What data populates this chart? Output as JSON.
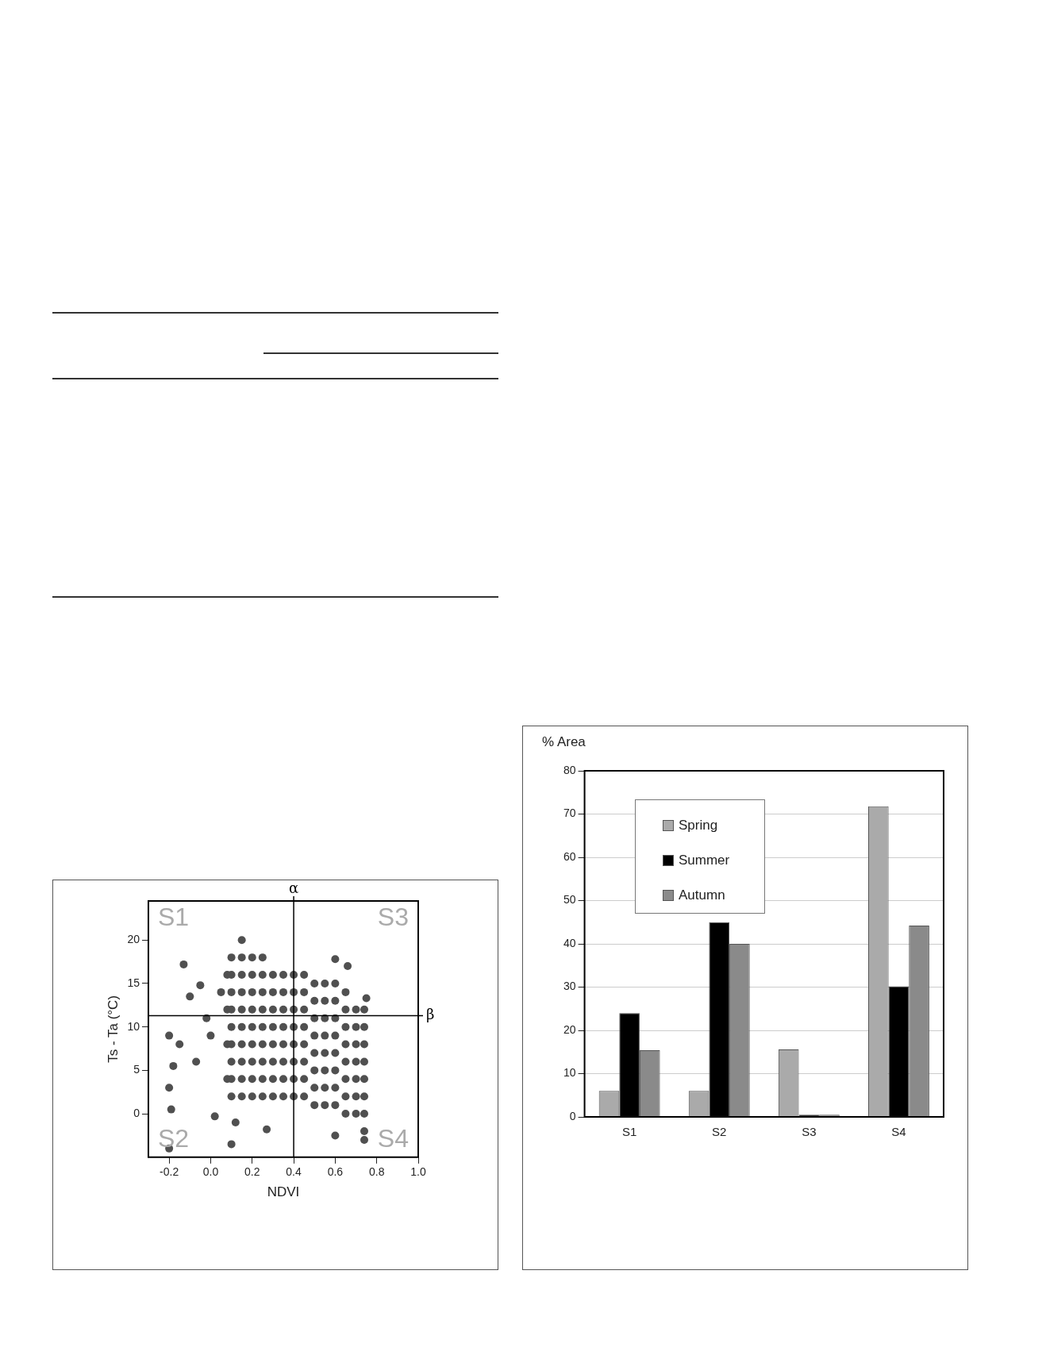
{
  "chart_data": [
    {
      "type": "scatter",
      "xlabel": "NDVI",
      "ylabel": "Ts - Ta (°C)",
      "xlim": [
        -0.3,
        1.0
      ],
      "ylim": [
        -5,
        24.5
      ],
      "xticks": [
        -0.2,
        {
          "value": 0,
          "label": "0.0"
        },
        0.2,
        0.4,
        0.6,
        0.8,
        {
          "value": 1,
          "label": "1.0"
        }
      ],
      "yticks": [
        0,
        5,
        10,
        15,
        20
      ],
      "grid": false,
      "legend": false,
      "marker": "circle",
      "series": [
        {
          "color": "#505050",
          "x": [
            0.08,
            0.08,
            0.08,
            0.08,
            0.1,
            0.1,
            0.1,
            0.1,
            0.1,
            0.1,
            0.1,
            0.1,
            0.1,
            0.15,
            0.15,
            0.15,
            0.15,
            0.15,
            0.15,
            0.15,
            0.15,
            0.15,
            0.15,
            0.2,
            0.2,
            0.2,
            0.2,
            0.2,
            0.2,
            0.2,
            0.2,
            0.2,
            0.25,
            0.25,
            0.25,
            0.25,
            0.25,
            0.25,
            0.25,
            0.25,
            0.25,
            0.3,
            0.3,
            0.3,
            0.3,
            0.3,
            0.3,
            0.3,
            0.3,
            0.35,
            0.35,
            0.35,
            0.35,
            0.35,
            0.35,
            0.35,
            0.35,
            0.4,
            0.4,
            0.4,
            0.4,
            0.4,
            0.4,
            0.4,
            0.4,
            0.45,
            0.45,
            0.45,
            0.45,
            0.45,
            0.45,
            0.45,
            0.45,
            0.5,
            0.5,
            0.5,
            0.5,
            0.5,
            0.5,
            0.5,
            0.5,
            0.55,
            0.55,
            0.55,
            0.55,
            0.55,
            0.55,
            0.55,
            0.55,
            0.6,
            0.6,
            0.6,
            0.6,
            0.6,
            0.6,
            0.6,
            0.6,
            0.65,
            0.65,
            0.65,
            0.65,
            0.65,
            0.65,
            0.65,
            0.65,
            0.7,
            0.7,
            0.7,
            0.7,
            0.7,
            0.7,
            0.7,
            0.74,
            0.74,
            0.74,
            0.74,
            0.74,
            0.74,
            0.74,
            0.74,
            0.74,
            -0.13,
            -0.2,
            -0.18,
            -0.2,
            -0.19,
            -0.2,
            -0.15,
            -0.1,
            -0.07,
            -0.05,
            -0.02,
            0,
            0.02,
            0.05,
            0.1,
            0.12,
            0.6,
            0.66,
            0.75,
            0.6,
            0.27
          ],
          "values": [
            4,
            8,
            12,
            16,
            2,
            4,
            6,
            8,
            10,
            12,
            14,
            16,
            18,
            2,
            4,
            6,
            8,
            10,
            12,
            14,
            16,
            18,
            20,
            2,
            4,
            6,
            8,
            10,
            12,
            14,
            16,
            18,
            2,
            4,
            6,
            8,
            10,
            12,
            14,
            16,
            18,
            2,
            4,
            6,
            8,
            10,
            12,
            14,
            16,
            2,
            4,
            6,
            8,
            10,
            12,
            14,
            16,
            2,
            4,
            6,
            8,
            10,
            12,
            14,
            16,
            2,
            4,
            6,
            8,
            10,
            12,
            14,
            16,
            1,
            3,
            5,
            7,
            9,
            11,
            13,
            15,
            1,
            3,
            5,
            7,
            9,
            11,
            13,
            15,
            1,
            3,
            5,
            7,
            9,
            11,
            13,
            15,
            0,
            2,
            4,
            6,
            8,
            10,
            12,
            14,
            0,
            2,
            4,
            6,
            8,
            10,
            12,
            -3,
            -2,
            0,
            2,
            4,
            6,
            8,
            10,
            12,
            17.2,
            9,
            5.5,
            3,
            0.5,
            -4,
            8,
            13.5,
            6,
            14.8,
            11,
            9,
            -0.3,
            14,
            -3.5,
            -1,
            17.8,
            17,
            13.3,
            -2.5,
            -1.8
          ]
        }
      ],
      "ref_lines": [
        {
          "axis": "x",
          "value": 0.4,
          "label": "α"
        },
        {
          "axis": "y",
          "value": 11.3,
          "label": "β"
        }
      ],
      "annotations": [
        "S1",
        "S2",
        "S3",
        "S4"
      ]
    },
    {
      "type": "bar",
      "ylabel": "% Area",
      "categories": [
        "S1",
        "S2",
        "S3",
        "S4"
      ],
      "ylim": [
        0,
        80
      ],
      "yticks": [
        0,
        10,
        20,
        30,
        40,
        50,
        60,
        70,
        80
      ],
      "grid": "y",
      "legend": "top left",
      "series": [
        {
          "name": "Spring",
          "color": "#aaaaaa",
          "values": [
            6,
            6,
            15.6,
            71.8
          ]
        },
        {
          "name": "Summer",
          "color": "#000000",
          "values": [
            24,
            45,
            0.5,
            30.2
          ]
        },
        {
          "name": "Autumn",
          "color": "#8a8a8a",
          "values": [
            15.4,
            40,
            0.5,
            44.2
          ]
        }
      ]
    }
  ]
}
